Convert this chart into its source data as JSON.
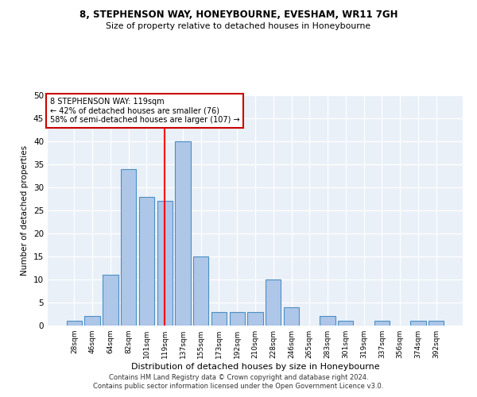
{
  "title1": "8, STEPHENSON WAY, HONEYBOURNE, EVESHAM, WR11 7GH",
  "title2": "Size of property relative to detached houses in Honeybourne",
  "xlabel": "Distribution of detached houses by size in Honeybourne",
  "ylabel": "Number of detached properties",
  "footer1": "Contains HM Land Registry data © Crown copyright and database right 2024.",
  "footer2": "Contains public sector information licensed under the Open Government Licence v3.0.",
  "annotation_line1": "8 STEPHENSON WAY: 119sqm",
  "annotation_line2": "← 42% of detached houses are smaller (76)",
  "annotation_line3": "58% of semi-detached houses are larger (107) →",
  "bin_labels": [
    "28sqm",
    "46sqm",
    "64sqm",
    "82sqm",
    "101sqm",
    "119sqm",
    "137sqm",
    "155sqm",
    "173sqm",
    "192sqm",
    "210sqm",
    "228sqm",
    "246sqm",
    "265sqm",
    "283sqm",
    "301sqm",
    "319sqm",
    "337sqm",
    "356sqm",
    "374sqm",
    "392sqm"
  ],
  "bar_heights": [
    1,
    2,
    11,
    34,
    28,
    27,
    40,
    15,
    3,
    3,
    3,
    10,
    4,
    0,
    2,
    1,
    0,
    1,
    0,
    1,
    1
  ],
  "bar_color": "#aec6e8",
  "bar_edge_color": "#4a90c4",
  "red_line_index": 5,
  "annotation_box_color": "#ffffff",
  "annotation_box_edge": "#cc0000",
  "bg_color": "#eaf0f8",
  "grid_color": "#ffffff",
  "ylim": [
    0,
    50
  ],
  "yticks": [
    0,
    5,
    10,
    15,
    20,
    25,
    30,
    35,
    40,
    45,
    50
  ]
}
